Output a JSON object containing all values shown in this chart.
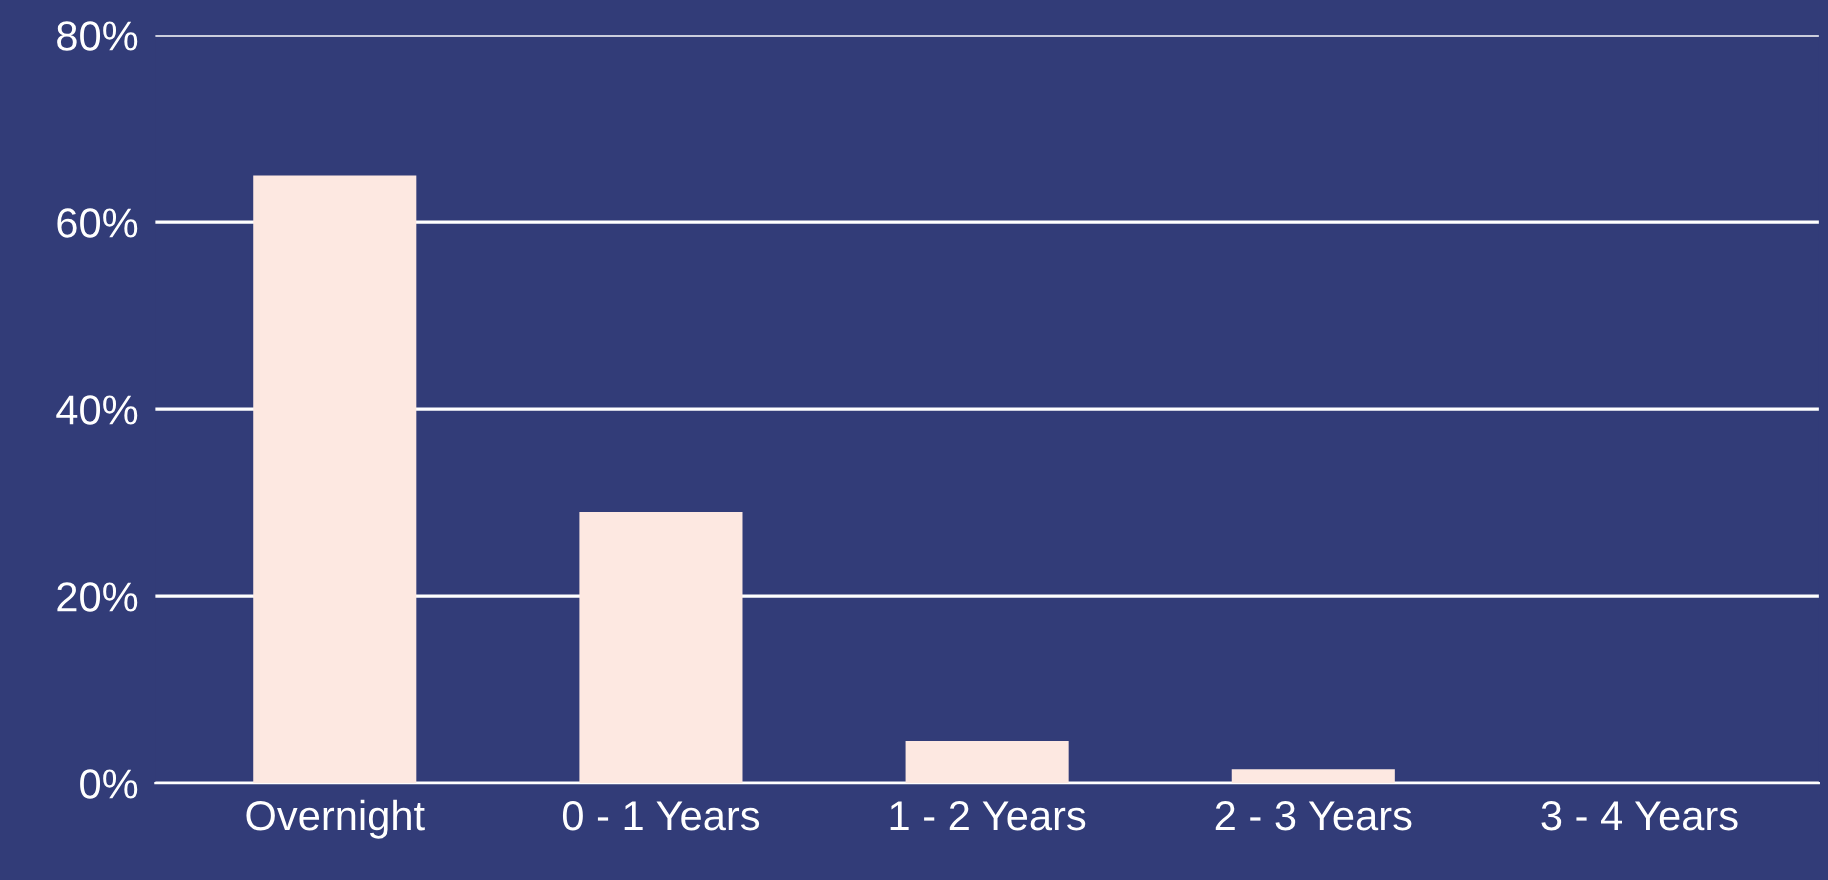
{
  "chart_data": {
    "type": "bar",
    "categories": [
      "Overnight",
      "0 - 1 Years",
      "1 - 2 Years",
      "2 - 3 Years",
      "3 - 4 Years"
    ],
    "values": [
      65,
      29,
      4.5,
      1.5,
      0
    ],
    "color": "#fde8e1",
    "ylim": [
      0,
      80
    ],
    "yticks": [
      {
        "value": 0,
        "label": "0%"
      },
      {
        "value": 20,
        "label": "20%"
      },
      {
        "value": 40,
        "label": "40%"
      },
      {
        "value": 60,
        "label": "60%"
      },
      {
        "value": 80,
        "label": "80%"
      }
    ],
    "grid": "y"
  }
}
